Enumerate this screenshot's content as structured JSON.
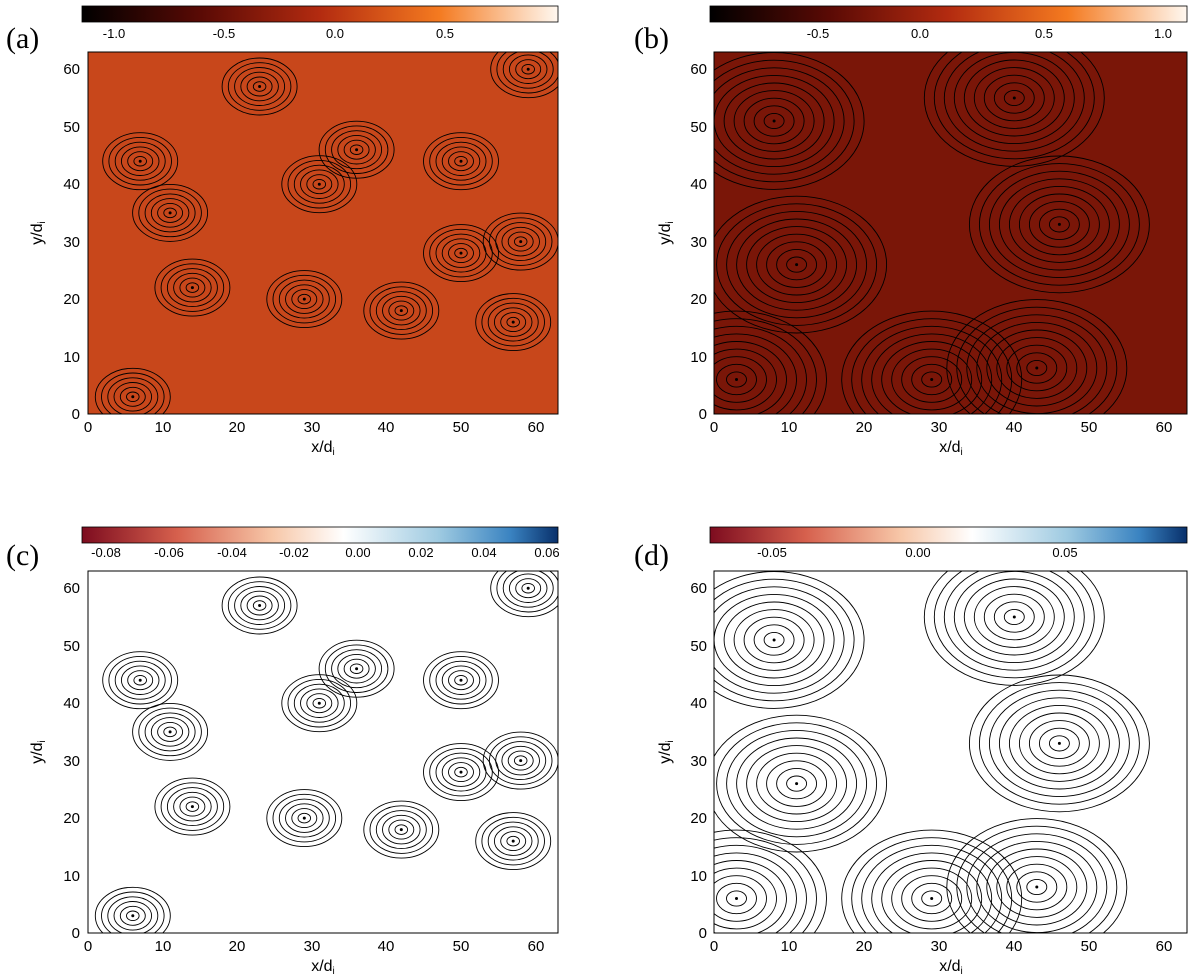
{
  "figure": {
    "panels": [
      {
        "letter": "(a)",
        "colorbar": {
          "ticks": [
            "-1.0",
            "-0.5",
            "0.0",
            "0.5"
          ],
          "range": [
            -1.2,
            0.95
          ],
          "colormap": "dark-red-orange-white"
        },
        "xlabel": "x/d",
        "xlabel_sub": "i",
        "ylabel": "y/d",
        "ylabel_sub": "i",
        "xticks": [
          "0",
          "10",
          "20",
          "30",
          "40",
          "50",
          "60"
        ],
        "yticks": [
          "0",
          "10",
          "20",
          "30",
          "40",
          "50",
          "60"
        ],
        "background_color": "#c8471b"
      },
      {
        "letter": "(b)",
        "colorbar": {
          "ticks": [
            "-0.5",
            "0.0",
            "0.5",
            "1.0"
          ],
          "range": [
            -0.85,
            1.1
          ],
          "colormap": "dark-red-orange-white"
        },
        "xlabel": "x/d",
        "xlabel_sub": "i",
        "ylabel": "y/d",
        "ylabel_sub": "i",
        "xticks": [
          "0",
          "10",
          "20",
          "30",
          "40",
          "50",
          "60"
        ],
        "yticks": [
          "0",
          "10",
          "20",
          "30",
          "40",
          "50",
          "60"
        ],
        "background_color": "#7a1608"
      },
      {
        "letter": "(c)",
        "colorbar": {
          "ticks": [
            "-0.08",
            "-0.06",
            "-0.04",
            "-0.02",
            "0.00",
            "0.02",
            "0.04",
            "0.06"
          ],
          "range": [
            -0.088,
            0.063
          ],
          "colormap": "red-white-blue"
        },
        "xlabel": "x/d",
        "xlabel_sub": "i",
        "ylabel": "y/d",
        "ylabel_sub": "i",
        "xticks": [
          "0",
          "10",
          "20",
          "30",
          "40",
          "50",
          "60"
        ],
        "yticks": [
          "0",
          "10",
          "20",
          "30",
          "40",
          "50",
          "60"
        ],
        "background_color": "#ffffff"
      },
      {
        "letter": "(d)",
        "colorbar": {
          "ticks": [
            "-0.05",
            "0.00",
            "0.05"
          ],
          "range": [
            -0.07,
            0.09
          ],
          "colormap": "red-white-blue"
        },
        "xlabel": "x/d",
        "xlabel_sub": "i",
        "ylabel": "y/d",
        "ylabel_sub": "i",
        "xticks": [
          "0",
          "10",
          "20",
          "30",
          "40",
          "50",
          "60"
        ],
        "yticks": [
          "0",
          "10",
          "20",
          "30",
          "40",
          "50",
          "60"
        ],
        "background_color": "#ffffff"
      }
    ]
  },
  "chart_data": [
    {
      "type": "heatmap",
      "panel": "(a)",
      "x_range": [
        0,
        63
      ],
      "y_range": [
        0,
        63
      ],
      "xlabel": "x/di",
      "ylabel": "y/di",
      "islands": [
        [
          6,
          3
        ],
        [
          23,
          57
        ],
        [
          7,
          44
        ],
        [
          11,
          35
        ],
        [
          14,
          22
        ],
        [
          29,
          20
        ],
        [
          31,
          40
        ],
        [
          36,
          46
        ],
        [
          42,
          18
        ],
        [
          50,
          44
        ],
        [
          50,
          28
        ],
        [
          57,
          16
        ],
        [
          58,
          30
        ],
        [
          59,
          60
        ]
      ]
    },
    {
      "type": "heatmap",
      "panel": "(b)",
      "x_range": [
        0,
        63
      ],
      "y_range": [
        0,
        63
      ],
      "xlabel": "x/di",
      "ylabel": "y/di",
      "islands": [
        [
          11,
          26
        ],
        [
          46,
          33
        ],
        [
          29,
          6
        ],
        [
          43,
          8
        ],
        [
          40,
          55
        ],
        [
          3,
          6
        ],
        [
          8,
          51
        ]
      ]
    },
    {
      "type": "heatmap",
      "panel": "(c)",
      "x_range": [
        0,
        63
      ],
      "y_range": [
        0,
        63
      ],
      "xlabel": "x/di",
      "ylabel": "y/di",
      "islands": [
        [
          6,
          3
        ],
        [
          23,
          57
        ],
        [
          7,
          44
        ],
        [
          11,
          35
        ],
        [
          14,
          22
        ],
        [
          29,
          20
        ],
        [
          31,
          40
        ],
        [
          36,
          46
        ],
        [
          42,
          18
        ],
        [
          50,
          44
        ],
        [
          50,
          28
        ],
        [
          57,
          16
        ],
        [
          58,
          30
        ],
        [
          59,
          60
        ]
      ]
    },
    {
      "type": "heatmap",
      "panel": "(d)",
      "x_range": [
        0,
        63
      ],
      "y_range": [
        0,
        63
      ],
      "xlabel": "x/di",
      "ylabel": "y/di",
      "islands": [
        [
          11,
          26
        ],
        [
          46,
          33
        ],
        [
          29,
          6
        ],
        [
          43,
          8
        ],
        [
          40,
          55
        ],
        [
          3,
          6
        ],
        [
          8,
          51
        ]
      ]
    }
  ]
}
